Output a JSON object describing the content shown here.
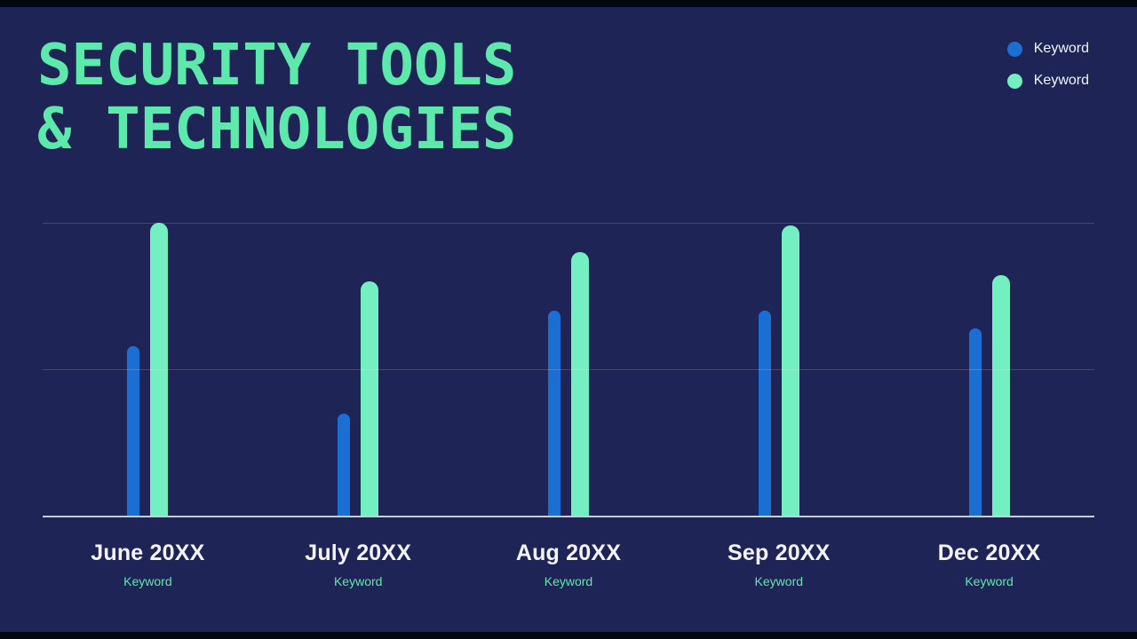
{
  "title": {
    "line1": "SECURITY TOOLS",
    "line2": "& TECHNOLOGIES"
  },
  "legend": [
    {
      "label": "Keyword",
      "color": "#1b6ed2"
    },
    {
      "label": "Keyword",
      "color": "#74efc1"
    }
  ],
  "chart_data": {
    "type": "bar",
    "title": "SECURITY TOOLS & TECHNOLOGIES",
    "categories": [
      "June 20XX",
      "July 20XX",
      "Aug 20XX",
      "Sep 20XX",
      "Dec 20XX"
    ],
    "category_sublabels": [
      "Keyword",
      "Keyword",
      "Keyword",
      "Keyword",
      "Keyword"
    ],
    "series": [
      {
        "name": "Keyword",
        "color": "#1b6ed2",
        "values": [
          58,
          35,
          70,
          70,
          64
        ]
      },
      {
        "name": "Keyword",
        "color": "#74efc1",
        "values": [
          100,
          80,
          90,
          99,
          82
        ]
      }
    ],
    "xlabel": "",
    "ylabel": "",
    "ylim": [
      0,
      100
    ],
    "grid": "horizontal gridlines at 0%, 50%, 100%",
    "legend_position": "top-right",
    "background_color": "#1f2456",
    "title_color": "#5de9ab"
  }
}
